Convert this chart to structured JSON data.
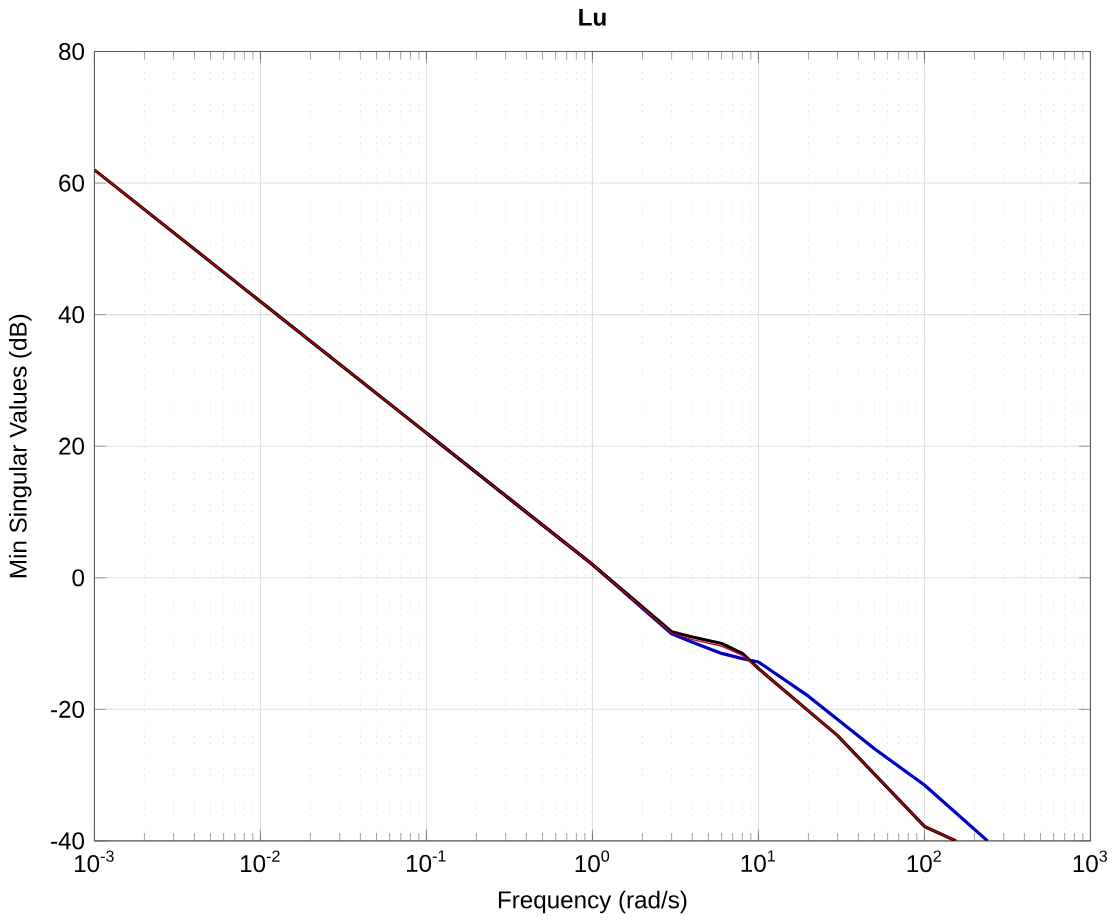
{
  "chart_data": {
    "type": "line",
    "title": "Lu",
    "xlabel": "Frequency (rad/s)",
    "ylabel": "Min Singular Values (dB)",
    "log": "x",
    "grid": true,
    "xlim": [
      0.001,
      1000
    ],
    "ylim": [
      -40,
      80
    ],
    "xticks": [
      {
        "value": 0.001,
        "label": "10$^{-3}$"
      },
      {
        "value": 0.01,
        "label": "10$^{-2}$"
      },
      {
        "value": 0.1,
        "label": "10$^{-1}$"
      },
      {
        "value": 1,
        "label": "10$^{0}$"
      },
      {
        "value": 10,
        "label": "10$^{1}$"
      },
      {
        "value": 100,
        "label": "10$^{2}$"
      },
      {
        "value": 1000,
        "label": "10$^{3}$"
      }
    ],
    "yticks": [
      -40,
      -20,
      0,
      20,
      40,
      60,
      80
    ],
    "series": [
      {
        "color": "#0000cc",
        "x": [
          0.1,
          1,
          3,
          4,
          6,
          8,
          10,
          20,
          50,
          100,
          240
        ],
        "values": [
          22,
          2,
          -8.5,
          -9.8,
          -11.5,
          -12.3,
          -12.8,
          -18,
          -26,
          -31.5,
          -40
        ]
      },
      {
        "color": "#000000",
        "x": [
          0.001,
          0.01,
          0.1,
          1,
          3,
          4,
          6,
          8,
          10,
          30,
          100,
          155
        ],
        "values": [
          62,
          42,
          22,
          2,
          -8.2,
          -9,
          -10,
          -11.5,
          -13.8,
          -24,
          -37.8,
          -40
        ]
      },
      {
        "color": "#cc0000",
        "x": [
          0.001,
          0.01,
          0.1,
          1,
          3,
          4,
          6,
          8,
          10,
          30,
          100,
          155
        ],
        "values": [
          62,
          42,
          22,
          2,
          -8.4,
          -9.4,
          -10.4,
          -11.8,
          -13.8,
          -24,
          -37.8,
          -40
        ]
      }
    ]
  }
}
